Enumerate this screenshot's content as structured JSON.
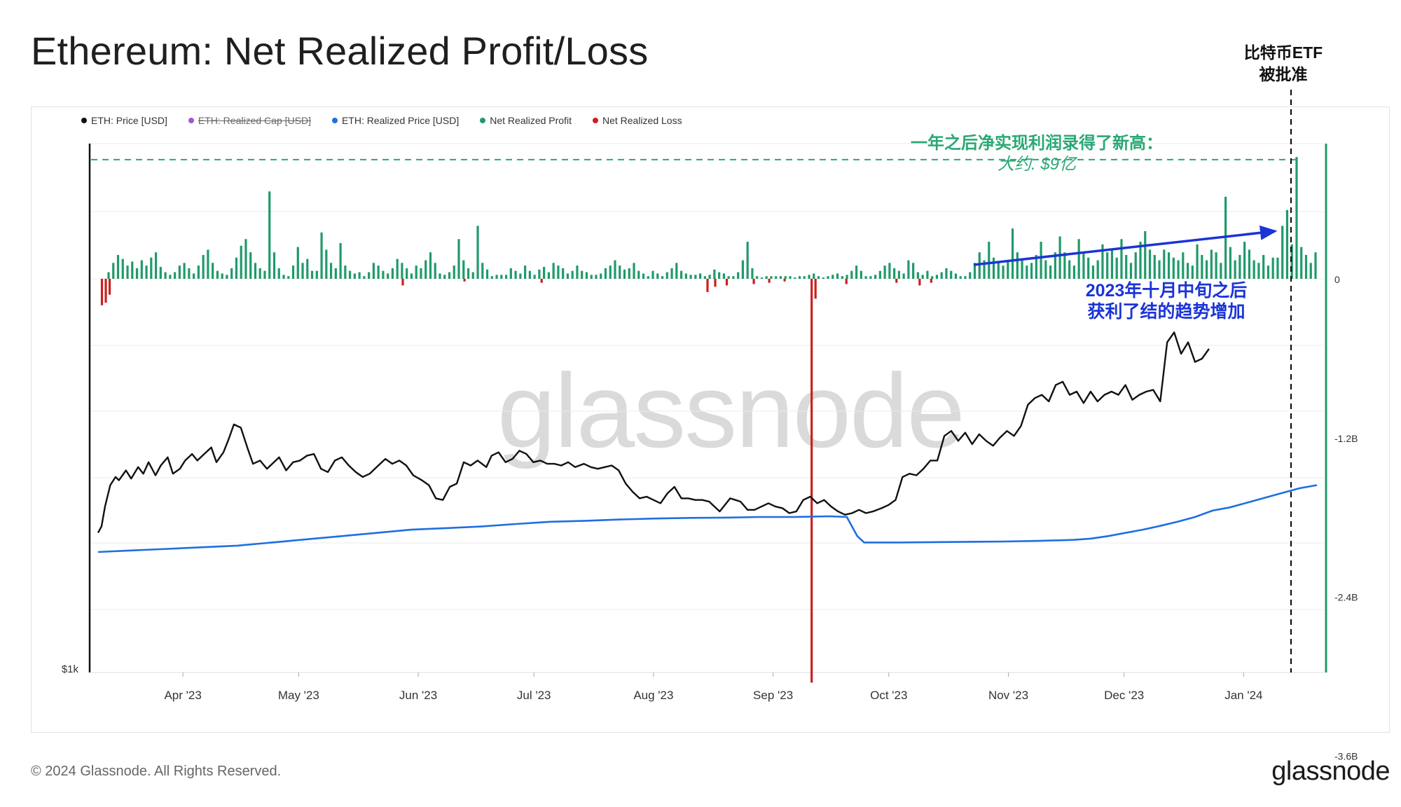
{
  "title": "Ethereum: Net Realized Profit/Loss",
  "etf_annotation": {
    "line1": "比特币ETF",
    "line2": "被批准"
  },
  "legend": [
    {
      "label": "ETH: Price [USD]",
      "color": "#111111",
      "struck": false
    },
    {
      "label": "ETH: Realized Cap [USD]",
      "color": "#a454d6",
      "struck": true
    },
    {
      "label": "ETH: Realized Price [USD]",
      "color": "#1f6fe0",
      "struck": false
    },
    {
      "label": "Net Realized Profit",
      "color": "#1f9a6a",
      "struck": false
    },
    {
      "label": "Net Realized Loss",
      "color": "#cc1f1f",
      "struck": false
    }
  ],
  "annotations": {
    "green_line1": "一年之后净实现利润录得了新高：",
    "green_line2": "大约. $9亿",
    "blue_line1": "2023年十月中旬之后",
    "blue_line2": "获利了结的趋势增加"
  },
  "watermark": "glassnode",
  "footer": {
    "copyright": "© 2024 Glassnode. All Rights Reserved.",
    "logo": "glassnode"
  },
  "colors": {
    "price": "#111111",
    "realized_price": "#1f6fe0",
    "profit": "#1f9a6a",
    "loss": "#cc1f1f",
    "green_annotation": "#2aa876",
    "blue_annotation": "#1b34d6"
  },
  "chart_data": {
    "type": "bar",
    "x_ticks": [
      "Apr '23",
      "May '23",
      "Jun '23",
      "Jul '23",
      "Aug '23",
      "Sep '23",
      "Oct '23",
      "Nov '23",
      "Dec '23",
      "Jan '24"
    ],
    "right_axis": {
      "ticks": [
        "0",
        "-1.2B",
        "-2.4B",
        "-3.6B"
      ],
      "values": [
        0,
        -1.2,
        -2.4,
        -3.6
      ],
      "unit": "B"
    },
    "left_axis": {
      "tick_label": "$1k"
    },
    "reference_level_net_profit": 0.9,
    "net_realized_pnl_billion": {
      "x_range": [
        "2023-03-10",
        "2024-01-20"
      ],
      "profit_samples": [
        0.05,
        0.12,
        0.18,
        0.15,
        0.1,
        0.13,
        0.08,
        0.14,
        0.1,
        0.16,
        0.2,
        0.09,
        0.05,
        0.03,
        0.05,
        0.1,
        0.12,
        0.08,
        0.04,
        0.1,
        0.18,
        0.22,
        0.12,
        0.06,
        0.04,
        0.03,
        0.08,
        0.16,
        0.25,
        0.3,
        0.2,
        0.12,
        0.08,
        0.06,
        0.66,
        0.2,
        0.08,
        0.03,
        0.02,
        0.1,
        0.24,
        0.12,
        0.15,
        0.06,
        0.06,
        0.35,
        0.22,
        0.12,
        0.08,
        0.27,
        0.1,
        0.06,
        0.04,
        0.05,
        0.02,
        0.05,
        0.12,
        0.1,
        0.06,
        0.04,
        0.08,
        0.15,
        0.12,
        0.08,
        0.04,
        0.1,
        0.08,
        0.14,
        0.2,
        0.12,
        0.04,
        0.03,
        0.05,
        0.1,
        0.3,
        0.14,
        0.08,
        0.05,
        0.4,
        0.12,
        0.07,
        0.02,
        0.03,
        0.03,
        0.03,
        0.08,
        0.06,
        0.04,
        0.1,
        0.06,
        0.03,
        0.07,
        0.09,
        0.05,
        0.12,
        0.1,
        0.08,
        0.04,
        0.06,
        0.1,
        0.06,
        0.05,
        0.03,
        0.03,
        0.04,
        0.08,
        0.1,
        0.14,
        0.1,
        0.07,
        0.08,
        0.12,
        0.06,
        0.04,
        0.02,
        0.06,
        0.04,
        0.02,
        0.05,
        0.08,
        0.12,
        0.06,
        0.04,
        0.03,
        0.03,
        0.04,
        0.02,
        0.03,
        0.07,
        0.05,
        0.04,
        0.02,
        0.02,
        0.05,
        0.14,
        0.28,
        0.08,
        0.02,
        0.01,
        0.02,
        0.02,
        0.02,
        0.02,
        0.02,
        0.02,
        0.01,
        0.02,
        0.02,
        0.03,
        0.04,
        0.02,
        0.01,
        0.02,
        0.03,
        0.04,
        0.02,
        0.03,
        0.06,
        0.1,
        0.06,
        0.02,
        0.02,
        0.03,
        0.06,
        0.1,
        0.12,
        0.08,
        0.06,
        0.04,
        0.14,
        0.12,
        0.05,
        0.03,
        0.06,
        0.02,
        0.03,
        0.05,
        0.08,
        0.06,
        0.04,
        0.02,
        0.02,
        0.05,
        0.12,
        0.2,
        0.14,
        0.28,
        0.16,
        0.12,
        0.1,
        0.14,
        0.38,
        0.2,
        0.15,
        0.1,
        0.12,
        0.18,
        0.28,
        0.14,
        0.1,
        0.2,
        0.32,
        0.2,
        0.14,
        0.1,
        0.3,
        0.2,
        0.16,
        0.1,
        0.14,
        0.26,
        0.2,
        0.22,
        0.16,
        0.3,
        0.18,
        0.12,
        0.2,
        0.28,
        0.36,
        0.22,
        0.18,
        0.14,
        0.22,
        0.2,
        0.16,
        0.14,
        0.2,
        0.12,
        0.1,
        0.26,
        0.18,
        0.14,
        0.22,
        0.2,
        0.12,
        0.62,
        0.24,
        0.14,
        0.18,
        0.28,
        0.22,
        0.14,
        0.12,
        0.18,
        0.1,
        0.16,
        0.16,
        0.4,
        0.52,
        0.26,
        0.92,
        0.24,
        0.18,
        0.12,
        0.2
      ],
      "loss_samples_billion": [
        {
          "x": "2023-03-11",
          "v": -0.2
        },
        {
          "x": "2023-03-12",
          "v": -0.18
        },
        {
          "x": "2023-03-13",
          "v": -0.12
        },
        {
          "x": "2023-05-28",
          "v": -0.05
        },
        {
          "x": "2023-06-13",
          "v": -0.02
        },
        {
          "x": "2023-07-03",
          "v": -0.03
        },
        {
          "x": "2023-08-15",
          "v": -0.1
        },
        {
          "x": "2023-08-17",
          "v": -0.06
        },
        {
          "x": "2023-08-20",
          "v": -0.05
        },
        {
          "x": "2023-08-27",
          "v": -0.04
        },
        {
          "x": "2023-08-31",
          "v": -0.03
        },
        {
          "x": "2023-09-04",
          "v": -0.02
        },
        {
          "x": "2023-09-11",
          "v": -3.05
        },
        {
          "x": "2023-09-12",
          "v": -0.15
        },
        {
          "x": "2023-09-20",
          "v": -0.04
        },
        {
          "x": "2023-10-03",
          "v": -0.03
        },
        {
          "x": "2023-10-09",
          "v": -0.05
        },
        {
          "x": "2023-10-12",
          "v": -0.03
        }
      ]
    },
    "eth_price_usd": {
      "series": [
        [
          1440,
          0.0
        ],
        [
          1480,
          0.2
        ],
        [
          1600,
          0.4
        ],
        [
          1730,
          0.7
        ],
        [
          1780,
          1.0
        ],
        [
          1760,
          1.2
        ],
        [
          1820,
          1.6
        ],
        [
          1770,
          1.9
        ],
        [
          1840,
          2.3
        ],
        [
          1800,
          2.6
        ],
        [
          1870,
          2.9
        ],
        [
          1790,
          3.3
        ],
        [
          1850,
          3.6
        ],
        [
          1900,
          4.0
        ],
        [
          1800,
          4.3
        ],
        [
          1830,
          4.7
        ],
        [
          1880,
          5.0
        ],
        [
          1920,
          5.4
        ],
        [
          1880,
          5.7
        ],
        [
          1910,
          6.0
        ],
        [
          1960,
          6.5
        ],
        [
          1870,
          6.8
        ],
        [
          1930,
          7.2
        ],
        [
          2010,
          7.5
        ],
        [
          2100,
          7.8
        ],
        [
          2080,
          8.2
        ],
        [
          1950,
          8.6
        ],
        [
          1860,
          8.9
        ],
        [
          1880,
          9.3
        ],
        [
          1830,
          9.7
        ],
        [
          1860,
          10.0
        ],
        [
          1900,
          10.4
        ],
        [
          1820,
          10.8
        ],
        [
          1870,
          11.2
        ],
        [
          1880,
          11.6
        ],
        [
          1910,
          12.0
        ],
        [
          1920,
          12.4
        ],
        [
          1830,
          12.8
        ],
        [
          1810,
          13.2
        ],
        [
          1880,
          13.6
        ],
        [
          1900,
          14.0
        ],
        [
          1850,
          14.4
        ],
        [
          1810,
          14.8
        ],
        [
          1780,
          15.2
        ],
        [
          1800,
          15.6
        ],
        [
          1840,
          16.0
        ],
        [
          1890,
          16.5
        ],
        [
          1860,
          16.9
        ],
        [
          1880,
          17.3
        ],
        [
          1850,
          17.7
        ],
        [
          1790,
          18.1
        ],
        [
          1760,
          18.6
        ],
        [
          1730,
          19.0
        ],
        [
          1650,
          19.4
        ],
        [
          1640,
          19.8
        ],
        [
          1720,
          20.2
        ],
        [
          1740,
          20.6
        ],
        [
          1870,
          21.0
        ],
        [
          1850,
          21.4
        ],
        [
          1880,
          21.8
        ],
        [
          1840,
          22.3
        ],
        [
          1910,
          22.6
        ],
        [
          1930,
          23.0
        ],
        [
          1870,
          23.4
        ],
        [
          1890,
          23.8
        ],
        [
          1940,
          24.2
        ],
        [
          1920,
          24.6
        ],
        [
          1870,
          25.0
        ],
        [
          1880,
          25.4
        ],
        [
          1860,
          25.8
        ],
        [
          1860,
          26.2
        ],
        [
          1850,
          26.6
        ],
        [
          1870,
          27.0
        ],
        [
          1840,
          27.4
        ],
        [
          1860,
          27.9
        ],
        [
          1840,
          28.3
        ],
        [
          1830,
          28.7
        ],
        [
          1840,
          29.1
        ],
        [
          1850,
          29.5
        ],
        [
          1820,
          29.9
        ],
        [
          1740,
          30.3
        ],
        [
          1690,
          30.7
        ],
        [
          1650,
          31.1
        ],
        [
          1660,
          31.5
        ],
        [
          1640,
          31.9
        ],
        [
          1620,
          32.3
        ],
        [
          1680,
          32.7
        ],
        [
          1720,
          33.1
        ],
        [
          1650,
          33.5
        ],
        [
          1650,
          33.9
        ],
        [
          1640,
          34.3
        ],
        [
          1640,
          34.7
        ],
        [
          1630,
          35.1
        ],
        [
          1600,
          35.4
        ],
        [
          1570,
          35.7
        ],
        [
          1610,
          36.0
        ],
        [
          1650,
          36.3
        ],
        [
          1640,
          36.6
        ],
        [
          1630,
          36.9
        ],
        [
          1580,
          37.3
        ],
        [
          1580,
          37.7
        ],
        [
          1600,
          38.1
        ],
        [
          1620,
          38.5
        ],
        [
          1600,
          38.9
        ],
        [
          1590,
          39.3
        ],
        [
          1560,
          39.7
        ],
        [
          1570,
          40.1
        ],
        [
          1640,
          40.5
        ],
        [
          1660,
          40.9
        ],
        [
          1620,
          41.3
        ],
        [
          1640,
          41.7
        ],
        [
          1600,
          42.1
        ],
        [
          1570,
          42.5
        ],
        [
          1550,
          42.9
        ],
        [
          1560,
          43.3
        ],
        [
          1580,
          43.7
        ],
        [
          1560,
          44.1
        ],
        [
          1570,
          44.5
        ],
        [
          1590,
          45.0
        ],
        [
          1610,
          45.4
        ],
        [
          1640,
          45.8
        ],
        [
          1780,
          46.2
        ],
        [
          1800,
          46.6
        ],
        [
          1790,
          47.0
        ],
        [
          1830,
          47.4
        ],
        [
          1880,
          47.8
        ],
        [
          1880,
          48.2
        ],
        [
          2030,
          48.6
        ],
        [
          2060,
          49.0
        ],
        [
          2000,
          49.4
        ],
        [
          2050,
          49.8
        ],
        [
          1980,
          50.2
        ],
        [
          2040,
          50.6
        ],
        [
          2000,
          51.0
        ],
        [
          1970,
          51.4
        ],
        [
          2020,
          51.8
        ],
        [
          2060,
          52.2
        ],
        [
          2030,
          52.6
        ],
        [
          2090,
          53.0
        ],
        [
          2220,
          53.4
        ],
        [
          2260,
          53.8
        ],
        [
          2280,
          54.2
        ],
        [
          2240,
          54.6
        ],
        [
          2340,
          55.0
        ],
        [
          2360,
          55.4
        ],
        [
          2280,
          55.8
        ],
        [
          2300,
          56.2
        ],
        [
          2230,
          56.6
        ],
        [
          2300,
          57.0
        ],
        [
          2240,
          57.4
        ],
        [
          2280,
          57.8
        ],
        [
          2300,
          58.2
        ],
        [
          2280,
          58.6
        ],
        [
          2340,
          59.0
        ],
        [
          2250,
          59.4
        ],
        [
          2280,
          59.8
        ],
        [
          2300,
          60.2
        ],
        [
          2310,
          60.6
        ],
        [
          2240,
          61.0
        ],
        [
          2600,
          61.4
        ],
        [
          2660,
          61.8
        ],
        [
          2530,
          62.2
        ],
        [
          2600,
          62.6
        ],
        [
          2480,
          63.0
        ],
        [
          2500,
          63.4
        ],
        [
          2560,
          63.8
        ]
      ],
      "series_unit_note": ""
    },
    "eth_realized_price_usd": {
      "series": [
        [
          1390,
          0.0
        ],
        [
          1395,
          2.0
        ],
        [
          1400,
          4.0
        ],
        [
          1405,
          6.0
        ],
        [
          1410,
          8.0
        ],
        [
          1420,
          10.0
        ],
        [
          1430,
          12.0
        ],
        [
          1440,
          14.0
        ],
        [
          1450,
          16.0
        ],
        [
          1460,
          18.0
        ],
        [
          1465,
          20.0
        ],
        [
          1470,
          22.0
        ],
        [
          1478,
          24.0
        ],
        [
          1485,
          26.0
        ],
        [
          1488,
          28.0
        ],
        [
          1492,
          30.0
        ],
        [
          1495,
          32.0
        ],
        [
          1497,
          34.0
        ],
        [
          1498,
          36.0
        ],
        [
          1500,
          38.0
        ],
        [
          1500,
          40.0
        ],
        [
          1502,
          42.0
        ],
        [
          1500,
          43.0
        ],
        [
          1440,
          43.6
        ],
        [
          1420,
          44.0
        ],
        [
          1420,
          46.0
        ],
        [
          1421,
          48.0
        ],
        [
          1422,
          50.0
        ],
        [
          1423,
          52.0
        ],
        [
          1425,
          54.0
        ],
        [
          1428,
          56.0
        ],
        [
          1432,
          57.0
        ],
        [
          1440,
          58.0
        ],
        [
          1450,
          59.0
        ],
        [
          1460,
          60.0
        ],
        [
          1472,
          61.0
        ],
        [
          1485,
          62.0
        ],
        [
          1500,
          63.0
        ],
        [
          1520,
          64.0
        ],
        [
          1530,
          65.0
        ],
        [
          1545,
          66.0
        ],
        [
          1560,
          67.0
        ],
        [
          1575,
          68.0
        ],
        [
          1590,
          69.0
        ],
        [
          1600,
          70.0
        ]
      ]
    }
  }
}
